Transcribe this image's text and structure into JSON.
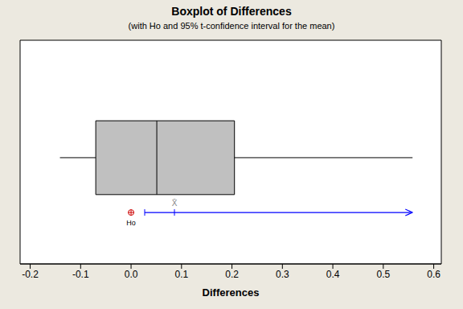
{
  "chart_data": {
    "type": "boxplot",
    "title": "Boxplot of Differences",
    "subtitle": "(with Ho and 95% t-confidence interval for the mean)",
    "x_label": "Differences",
    "box": {
      "whisker_low": -0.141,
      "q1": -0.07,
      "median": 0.051,
      "q3": 0.205,
      "whisker_high": 0.558
    },
    "mean": {
      "value": 0.086,
      "label": "X̄"
    },
    "h0": {
      "value": 0,
      "label": "Ho"
    },
    "ci": {
      "lower": 0.027,
      "upper": 0.558
    },
    "xlim": [
      -0.22,
      0.615
    ],
    "xticks": [
      -0.2,
      -0.1,
      {
        "value": 0,
        "label": "0.0"
      },
      0.1,
      0.2,
      0.3,
      0.4,
      0.5,
      0.6
    ],
    "color": "#c0c0c0",
    "ci_color": "#0000ff",
    "h0_color": "#cc0000",
    "tick_labels": "x"
  }
}
